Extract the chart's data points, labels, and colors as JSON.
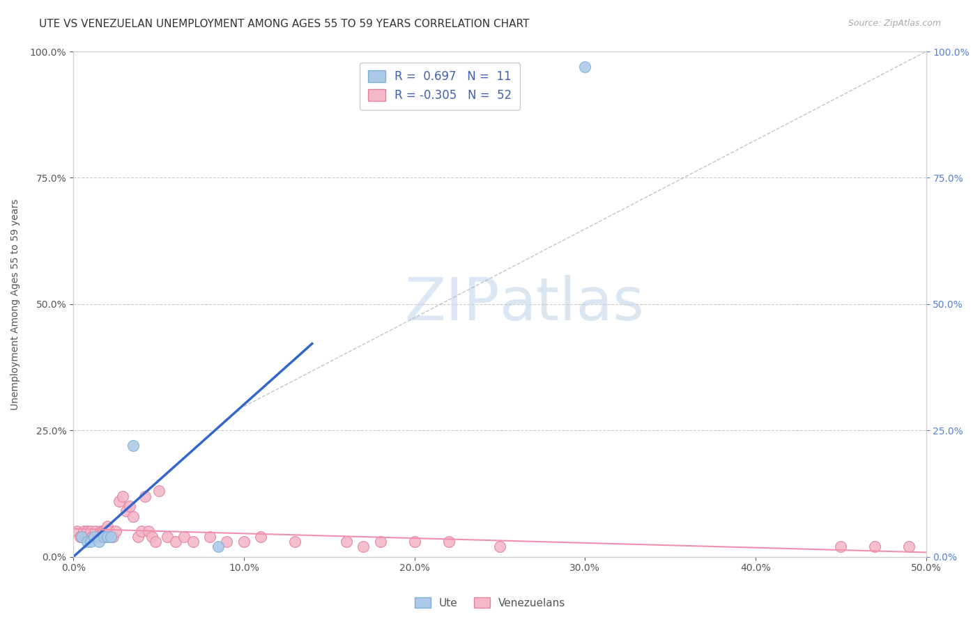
{
  "title": "UTE VS VENEZUELAN UNEMPLOYMENT AMONG AGES 55 TO 59 YEARS CORRELATION CHART",
  "source": "Source: ZipAtlas.com",
  "ylabel": "Unemployment Among Ages 55 to 59 years",
  "xlim": [
    0.0,
    0.5
  ],
  "ylim": [
    0.0,
    1.0
  ],
  "xtick_labels": [
    "0.0%",
    "10.0%",
    "20.0%",
    "30.0%",
    "40.0%",
    "50.0%"
  ],
  "xtick_values": [
    0.0,
    0.1,
    0.2,
    0.3,
    0.4,
    0.5
  ],
  "ytick_labels": [
    "0.0%",
    "25.0%",
    "50.0%",
    "75.0%",
    "100.0%"
  ],
  "ytick_values": [
    0.0,
    0.25,
    0.5,
    0.75,
    1.0
  ],
  "watermark_zip": "ZIP",
  "watermark_atlas": "atlas",
  "ute_color": "#adc9e8",
  "ute_edge_color": "#7aafd4",
  "venezuelan_color": "#f4b8c8",
  "venezuelan_edge_color": "#e080a0",
  "ute_line_color": "#3366cc",
  "venezuelan_line_color": "#f090b0",
  "legend_blue_color": "#adc9e8",
  "legend_pink_color": "#f4b8c8",
  "legend_text_color": "#4060b0",
  "R_ute": 0.697,
  "N_ute": 11,
  "R_venezuelan": -0.305,
  "N_venezuelan": 52,
  "ute_scatter_x": [
    0.005,
    0.008,
    0.01,
    0.012,
    0.015,
    0.018,
    0.02,
    0.022,
    0.035,
    0.085,
    0.3
  ],
  "ute_scatter_y": [
    0.04,
    0.03,
    0.03,
    0.04,
    0.03,
    0.04,
    0.04,
    0.04,
    0.22,
    0.02,
    0.97
  ],
  "venezuelan_scatter_x": [
    0.002,
    0.004,
    0.005,
    0.006,
    0.007,
    0.008,
    0.009,
    0.01,
    0.011,
    0.012,
    0.013,
    0.014,
    0.015,
    0.016,
    0.017,
    0.018,
    0.019,
    0.02,
    0.021,
    0.022,
    0.023,
    0.025,
    0.027,
    0.029,
    0.031,
    0.033,
    0.035,
    0.038,
    0.04,
    0.042,
    0.044,
    0.046,
    0.048,
    0.05,
    0.055,
    0.06,
    0.065,
    0.07,
    0.08,
    0.09,
    0.1,
    0.11,
    0.13,
    0.16,
    0.17,
    0.18,
    0.2,
    0.22,
    0.25,
    0.45,
    0.47,
    0.49
  ],
  "venezuelan_scatter_y": [
    0.05,
    0.04,
    0.04,
    0.05,
    0.04,
    0.05,
    0.04,
    0.05,
    0.04,
    0.04,
    0.05,
    0.04,
    0.04,
    0.05,
    0.05,
    0.05,
    0.05,
    0.06,
    0.05,
    0.04,
    0.04,
    0.05,
    0.11,
    0.12,
    0.09,
    0.1,
    0.08,
    0.04,
    0.05,
    0.12,
    0.05,
    0.04,
    0.03,
    0.13,
    0.04,
    0.03,
    0.04,
    0.03,
    0.04,
    0.03,
    0.03,
    0.04,
    0.03,
    0.03,
    0.02,
    0.03,
    0.03,
    0.03,
    0.02,
    0.02,
    0.02,
    0.02
  ],
  "background_color": "#ffffff",
  "grid_color": "#cccccc",
  "title_color": "#333333",
  "title_fontsize": 11,
  "axis_label_color": "#555555",
  "right_axis_color": "#5580d0"
}
